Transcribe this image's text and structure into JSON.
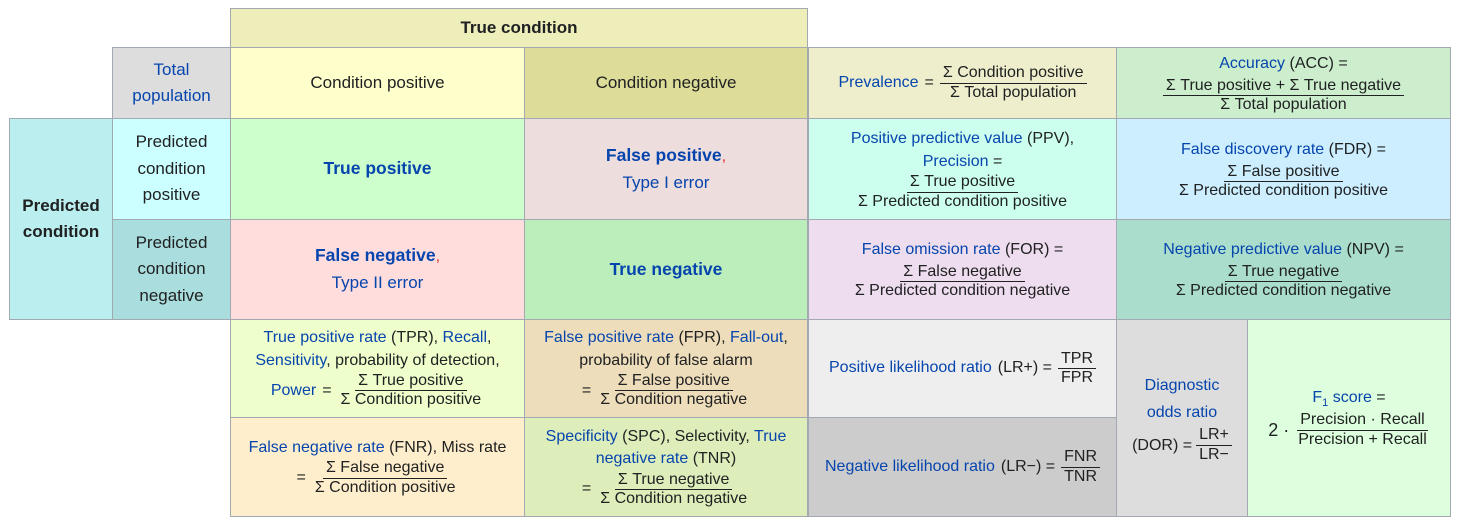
{
  "header": {
    "true_condition": "True condition"
  },
  "corner": {
    "total_population": "Total population"
  },
  "columns": {
    "condition_positive": "Condition positive",
    "condition_negative": "Condition negative"
  },
  "rows": {
    "predicted_condition": "Predicted condition",
    "predicted_positive": "Predicted condition positive",
    "predicted_negative": "Predicted condition negative"
  },
  "cells": {
    "true_positive": "True positive",
    "false_positive": "False positive",
    "type1": "Type I error",
    "false_negative": "False negative",
    "type2": "Type II error",
    "true_negative": "True negative",
    "comma": ","
  },
  "prevalence": {
    "label": "Prevalence",
    "eq": "=",
    "num": "Σ Condition positive",
    "den": "Σ Total population"
  },
  "accuracy": {
    "label": "Accuracy",
    "abbr": "(ACC) =",
    "num": "Σ True positive + Σ True negative",
    "den": "Σ Total population"
  },
  "ppv": {
    "label": "Positive predictive value",
    "abbr": "(PPV),",
    "label2": "Precision",
    "eq": "=",
    "num": "Σ True positive",
    "den": "Σ Predicted condition positive"
  },
  "fdr": {
    "label": "False discovery rate",
    "abbr": "(FDR) =",
    "num": "Σ False positive",
    "den": "Σ Predicted condition positive"
  },
  "for": {
    "label": "False omission rate",
    "abbr": "(FOR) =",
    "num": "Σ False negative",
    "den": "Σ Predicted condition negative"
  },
  "npv": {
    "label": "Negative predictive value",
    "abbr": "(NPV) =",
    "num": "Σ True negative",
    "den": "Σ Predicted condition negative"
  },
  "tpr": {
    "label": "True positive rate",
    "abbr": "(TPR),",
    "recall": "Recall",
    "comma": ",",
    "sensitivity": "Sensitivity",
    "detection": ", probability of detection,",
    "power": "Power",
    "eq": "=",
    "num": "Σ True positive",
    "den": "Σ Condition positive"
  },
  "fpr": {
    "label": "False positive rate",
    "abbr": "(FPR),",
    "fallout": "Fall-out",
    "comma": ",",
    "alarm": "probability of false alarm",
    "eq": "=",
    "num": "Σ False positive",
    "den": "Σ Condition negative"
  },
  "fnr": {
    "label": "False negative rate",
    "abbr": "(FNR), Miss rate",
    "eq": "=",
    "num": "Σ False negative",
    "den": "Σ Condition positive"
  },
  "spc": {
    "label": "Specificity",
    "abbr": "(SPC), Selectivity,",
    "tnr": "True negative rate",
    "tnr_abbr": "(TNR)",
    "eq": "=",
    "num": "Σ True negative",
    "den": "Σ Condition negative"
  },
  "lrp": {
    "label": "Positive likelihood ratio",
    "abbr": "(LR+) =",
    "num": "TPR",
    "den": "FPR"
  },
  "lrn": {
    "label": "Negative likelihood ratio",
    "abbr": "(LR−) =",
    "num": "FNR",
    "den": "TNR"
  },
  "dor": {
    "label": "Diagnostic odds ratio",
    "abbr": "(DOR) =",
    "num": "LR+",
    "den": "LR−"
  },
  "f1": {
    "label": "F",
    "sub": "1",
    "label_rest": " score",
    "eq": "=",
    "two": "2 ·",
    "num": "Precision · Recall",
    "den": "Precision + Recall"
  }
}
